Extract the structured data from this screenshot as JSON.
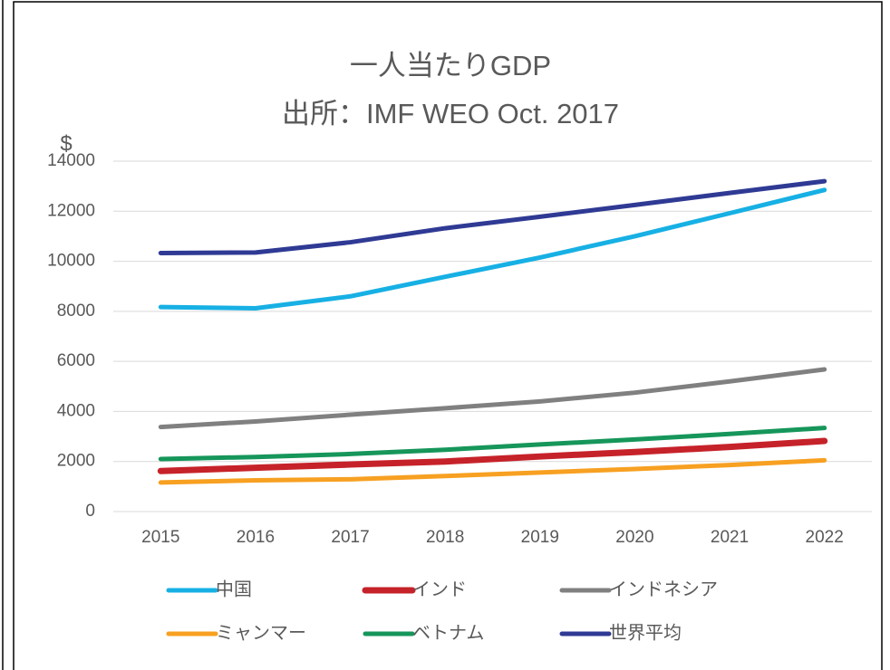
{
  "chart_data": {
    "type": "line",
    "title": "一人当たりGDP",
    "subtitle": "出所：IMF WEO Oct. 2017",
    "y_label": "$",
    "categories": [
      "2015",
      "2016",
      "2017",
      "2018",
      "2019",
      "2020",
      "2021",
      "2022"
    ],
    "series": [
      {
        "name": "中国",
        "color": "#17b0e4",
        "values": [
          8170,
          8120,
          8600,
          9380,
          10150,
          11000,
          11920,
          12850
        ]
      },
      {
        "name": "インド",
        "color": "#c6222a",
        "values": [
          1620,
          1750,
          1880,
          2000,
          2200,
          2380,
          2580,
          2820
        ]
      },
      {
        "name": "インドネシア",
        "color": "#808080",
        "values": [
          3380,
          3600,
          3870,
          4130,
          4400,
          4750,
          5200,
          5680
        ]
      },
      {
        "name": "ミャンマー",
        "color": "#f7a021",
        "values": [
          1160,
          1250,
          1290,
          1420,
          1560,
          1700,
          1860,
          2050
        ]
      },
      {
        "name": "ベトナム",
        "color": "#16965a",
        "values": [
          2100,
          2180,
          2300,
          2470,
          2680,
          2880,
          3100,
          3340
        ]
      },
      {
        "name": "世界平均",
        "color": "#2f3a94",
        "values": [
          10330,
          10350,
          10760,
          11320,
          11780,
          12250,
          12730,
          13200
        ]
      }
    ],
    "ylim": [
      0,
      14000
    ],
    "yticks": [
      0,
      2000,
      4000,
      6000,
      8000,
      10000,
      12000,
      14000
    ],
    "grid": true
  }
}
